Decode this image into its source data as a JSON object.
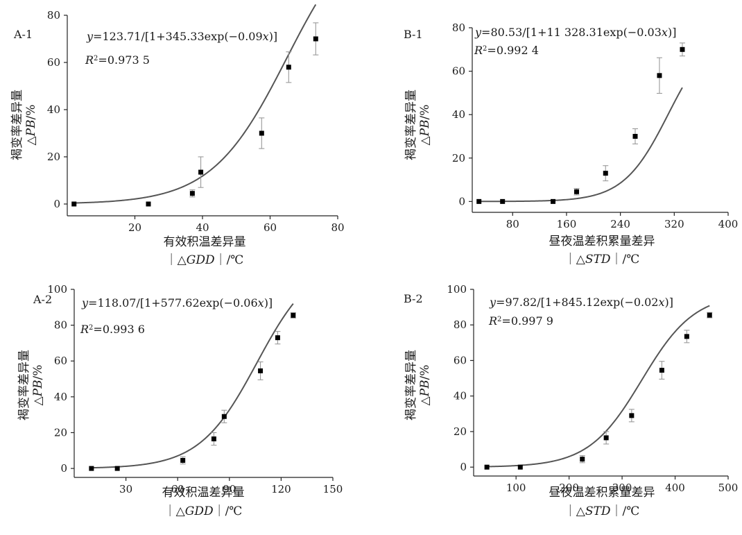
{
  "chart_data": [
    {
      "type": "scatter",
      "panel_label": "A-1",
      "equation": [
        "y=123.71/[1+345.33exp(−0.09",
        "x",
        ")]"
      ],
      "r2": [
        "R",
        "2",
        "=0.973 5"
      ],
      "ylabel": [
        "褐变率差异量",
        "△",
        "PB",
        "/%"
      ],
      "xlabel": [
        "有效积温差异量",
        "｜△",
        "GDD",
        "｜/℃"
      ],
      "xticks": [
        20,
        40,
        60,
        80
      ],
      "yticks": [
        0,
        20,
        40,
        60,
        80
      ],
      "xlim": [
        0,
        80
      ],
      "ylim": [
        -5,
        80
      ],
      "fit": {
        "a": 123.71,
        "b": 345.33,
        "c": 0.09
      },
      "points": [
        {
          "x": 2,
          "y": 0,
          "err": 0
        },
        {
          "x": 24,
          "y": 0,
          "err": 0
        },
        {
          "x": 37,
          "y": 4.5,
          "err": 1.5
        },
        {
          "x": 39.5,
          "y": 13.5,
          "err": 6.5
        },
        {
          "x": 57.5,
          "y": 30,
          "err": 6.5
        },
        {
          "x": 65.5,
          "y": 58,
          "err": 6.5
        },
        {
          "x": 73.5,
          "y": 70,
          "err": 6.8
        }
      ]
    },
    {
      "type": "scatter",
      "panel_label": "B-1",
      "equation": [
        "y=80.53/[1+11 328.31exp(−0.03",
        "x",
        ")]"
      ],
      "r2": [
        "R",
        "2",
        "=0.992 4"
      ],
      "ylabel": [
        "褐变率差异量",
        "△",
        "PB",
        "/%"
      ],
      "xlabel": [
        "昼夜温差积累量差异",
        "｜△",
        "STD",
        "｜/℃"
      ],
      "xticks": [
        80,
        160,
        240,
        320,
        400
      ],
      "yticks": [
        0,
        20,
        40,
        60,
        80
      ],
      "xlim": [
        20,
        400
      ],
      "ylim": [
        -5,
        80
      ],
      "fit": {
        "a": 80.53,
        "b": 11328.31,
        "c": 0.03
      },
      "points": [
        {
          "x": 30,
          "y": 0,
          "err": 0
        },
        {
          "x": 65,
          "y": 0,
          "err": 0
        },
        {
          "x": 140,
          "y": 0,
          "err": 0
        },
        {
          "x": 175,
          "y": 4.5,
          "err": 1.5
        },
        {
          "x": 218,
          "y": 13,
          "err": 3.5
        },
        {
          "x": 262,
          "y": 30,
          "err": 3.5
        },
        {
          "x": 298,
          "y": 58,
          "err": 8.2
        },
        {
          "x": 332,
          "y": 70,
          "err": 3
        }
      ]
    },
    {
      "type": "scatter",
      "panel_label": "A-2",
      "equation": [
        "y=118.07/[1+577.62exp(−0.06",
        "x",
        ")]"
      ],
      "r2": [
        "R",
        "2",
        "=0.993 6"
      ],
      "ylabel": [
        "褐变率差异量",
        "△",
        "PB",
        "/%"
      ],
      "xlabel": [
        "有效积温差异量",
        "｜△",
        "GDD",
        "｜/℃"
      ],
      "xticks": [
        30,
        60,
        90,
        120,
        150
      ],
      "yticks": [
        0,
        20,
        40,
        60,
        80,
        100
      ],
      "xlim": [
        0,
        150
      ],
      "ylim": [
        -5,
        100
      ],
      "fit": {
        "a": 118.07,
        "b": 577.62,
        "c": 0.06
      },
      "points": [
        {
          "x": 10,
          "y": 0,
          "err": 0
        },
        {
          "x": 25,
          "y": 0,
          "err": 0
        },
        {
          "x": 63,
          "y": 4.5,
          "err": 2
        },
        {
          "x": 81,
          "y": 16.5,
          "err": 3.5
        },
        {
          "x": 87,
          "y": 29,
          "err": 3.5
        },
        {
          "x": 108,
          "y": 54.5,
          "err": 5
        },
        {
          "x": 118,
          "y": 73,
          "err": 3.5
        },
        {
          "x": 127,
          "y": 85.5,
          "err": 1.5
        }
      ]
    },
    {
      "type": "scatter",
      "panel_label": "B-2",
      "equation": [
        "y=97.82/[1+845.12exp(−0.02",
        "x",
        ")]"
      ],
      "r2": [
        "R",
        "2",
        "=0.997 9"
      ],
      "ylabel": [
        "褐变率差异量",
        "△",
        "PB",
        "/%"
      ],
      "xlabel": [
        "昼夜温差积累量差异",
        "｜△",
        "STD",
        "｜/℃"
      ],
      "xticks": [
        100,
        200,
        300,
        400,
        500
      ],
      "yticks": [
        0,
        20,
        40,
        60,
        80,
        100
      ],
      "xlim": [
        20,
        500
      ],
      "ylim": [
        -5,
        100
      ],
      "fit": {
        "a": 97.82,
        "b": 845.12,
        "c": 0.02
      },
      "points": [
        {
          "x": 45,
          "y": 0,
          "err": 0
        },
        {
          "x": 108,
          "y": 0,
          "err": 0
        },
        {
          "x": 225,
          "y": 4.5,
          "err": 2
        },
        {
          "x": 270,
          "y": 16.5,
          "err": 3.5
        },
        {
          "x": 318,
          "y": 29,
          "err": 3.5
        },
        {
          "x": 375,
          "y": 54.5,
          "err": 5
        },
        {
          "x": 422,
          "y": 73.5,
          "err": 3.5
        },
        {
          "x": 465,
          "y": 85.5,
          "err": 1.5
        }
      ]
    }
  ]
}
